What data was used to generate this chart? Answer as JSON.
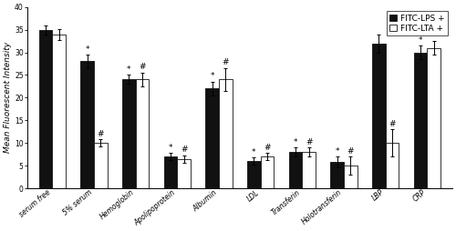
{
  "categories": [
    "serum free",
    "5% serum",
    "Hemoglobin",
    "Apolipoprotein",
    "Albumin",
    "LDL",
    "Transferin",
    "Holotransferin",
    "LBP",
    "CRP"
  ],
  "lps_values": [
    35.0,
    28.0,
    24.0,
    7.0,
    22.0,
    6.0,
    8.0,
    5.8,
    32.0,
    30.0
  ],
  "lta_values": [
    34.0,
    10.0,
    24.0,
    6.5,
    24.0,
    7.0,
    8.0,
    5.0,
    10.0,
    31.0
  ],
  "lps_errors": [
    1.0,
    1.5,
    1.0,
    0.8,
    1.5,
    0.8,
    1.0,
    1.2,
    2.0,
    1.5
  ],
  "lta_errors": [
    1.2,
    0.8,
    1.5,
    0.8,
    2.5,
    0.8,
    1.0,
    2.0,
    3.0,
    1.5
  ],
  "lps_color": "#111111",
  "lta_color": "#ffffff",
  "bar_edge_color": "#111111",
  "ylabel": "Mean Fluorescent Intensity",
  "ylim": [
    0,
    40
  ],
  "yticks": [
    0,
    5,
    10,
    15,
    20,
    25,
    30,
    35,
    40
  ],
  "legend_labels": [
    "FITC-LPS +",
    "FITC-LTA +"
  ],
  "lps_annotations": [
    null,
    "*",
    "*",
    "*",
    "*",
    "*",
    "*",
    "*",
    null,
    "*"
  ],
  "lta_annotations": [
    null,
    "#",
    "#",
    "#",
    "#",
    "#",
    "#",
    "#",
    "#",
    null
  ],
  "background_color": "#ffffff",
  "bar_width": 0.32,
  "label_fontsize": 6.5,
  "tick_fontsize": 5.5,
  "annotation_fontsize": 6.5,
  "legend_fontsize": 6.5
}
